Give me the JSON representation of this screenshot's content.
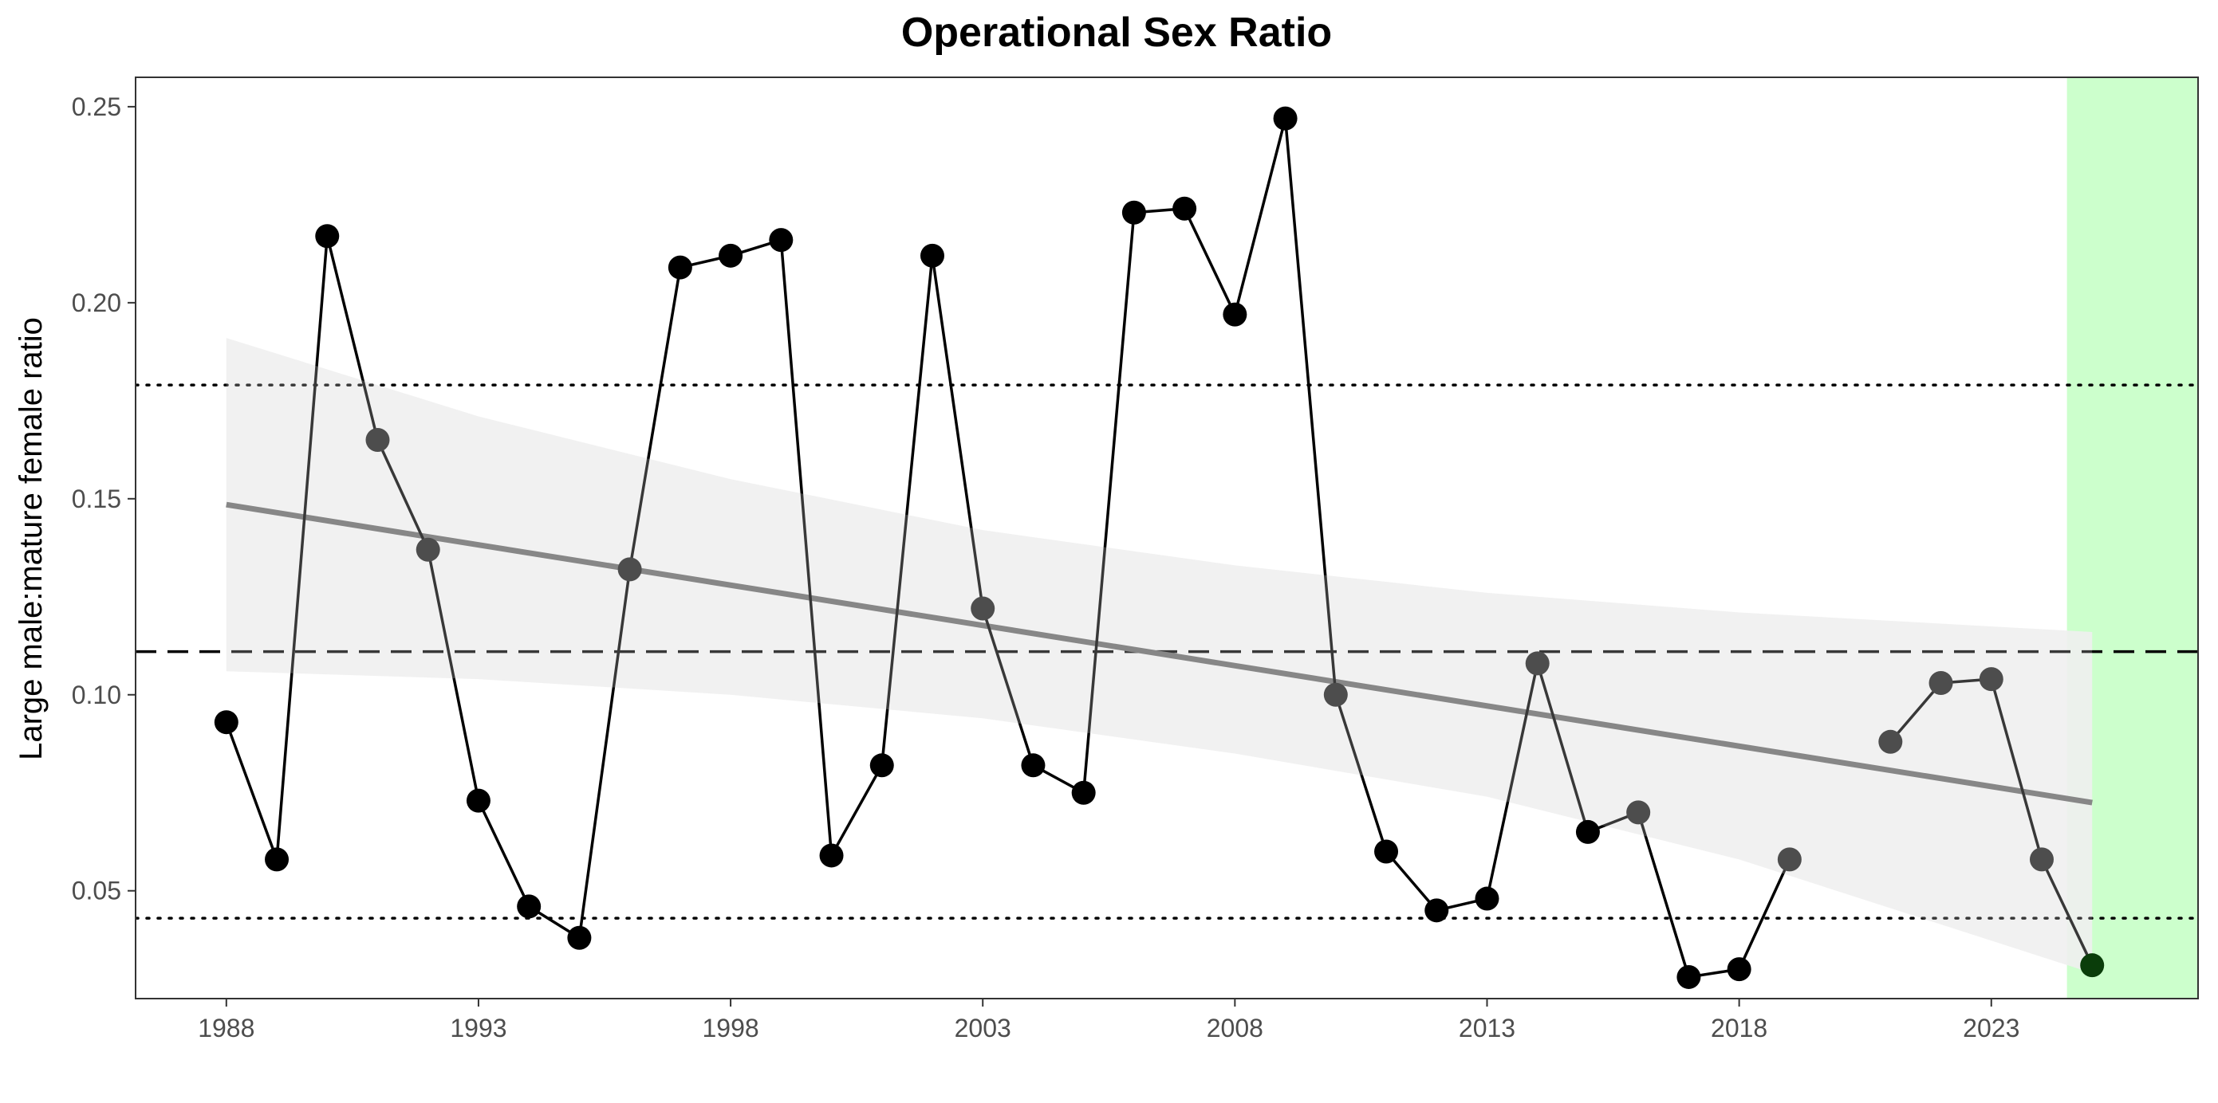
{
  "chart_data": {
    "type": "line",
    "title": "Operational Sex Ratio",
    "xlabel": "",
    "ylabel": "Large male:mature female ratio",
    "xlim": [
      1986.2,
      2027.1
    ],
    "ylim": [
      0.0225,
      0.2575
    ],
    "xticks": [
      1988,
      1993,
      1998,
      2003,
      2008,
      2013,
      2018,
      2023
    ],
    "yticks": [
      0.05,
      0.1,
      0.15,
      0.2,
      0.25
    ],
    "ytick_labels": [
      "0.05",
      "0.10",
      "0.15",
      "0.20",
      "0.25"
    ],
    "grid": false,
    "series": [
      {
        "x": [
          1988,
          1989,
          1990,
          1991,
          1992,
          1993,
          1994,
          1995,
          1996,
          1997,
          1998,
          1999,
          2000,
          2001,
          2002,
          2003,
          2004,
          2005,
          2006,
          2007,
          2008,
          2009,
          2010,
          2011,
          2012,
          2013,
          2014,
          2015,
          2016,
          2017,
          2018,
          2019,
          2021,
          2022,
          2023,
          2024,
          2025
        ],
        "values": [
          0.093,
          0.058,
          0.217,
          0.165,
          0.137,
          0.073,
          0.046,
          0.038,
          0.132,
          0.209,
          0.212,
          0.216,
          0.059,
          0.082,
          0.212,
          0.122,
          0.082,
          0.075,
          0.223,
          0.224,
          0.197,
          0.247,
          0.1,
          0.06,
          0.045,
          0.048,
          0.108,
          0.065,
          0.07,
          0.028,
          0.03,
          0.058,
          0.088,
          0.103,
          0.104,
          0.058,
          0.031
        ]
      }
    ],
    "trend": {
      "x": [
        1988,
        2025
      ],
      "values": [
        0.1485,
        0.0725
      ]
    },
    "confidence_band": {
      "x": [
        1988,
        1993,
        1998,
        2003,
        2008,
        2013,
        2018,
        2025
      ],
      "upper": [
        0.191,
        0.171,
        0.155,
        0.142,
        0.133,
        0.126,
        0.121,
        0.116
      ],
      "lower": [
        0.106,
        0.104,
        0.1,
        0.094,
        0.085,
        0.074,
        0.058,
        0.029
      ]
    },
    "reference_lines": {
      "mean": 0.111,
      "upper_dotted": 0.179,
      "lower_dotted": 0.043
    },
    "highlight_region": [
      2024.5,
      2027.1
    ],
    "colors": {
      "solid_point": "#000000",
      "faded_point": "#4d4d4d",
      "latest_point": "#0a3d0a",
      "trend": "#666666",
      "band": "#ebebeb",
      "highlight": "#ccffcc"
    }
  }
}
